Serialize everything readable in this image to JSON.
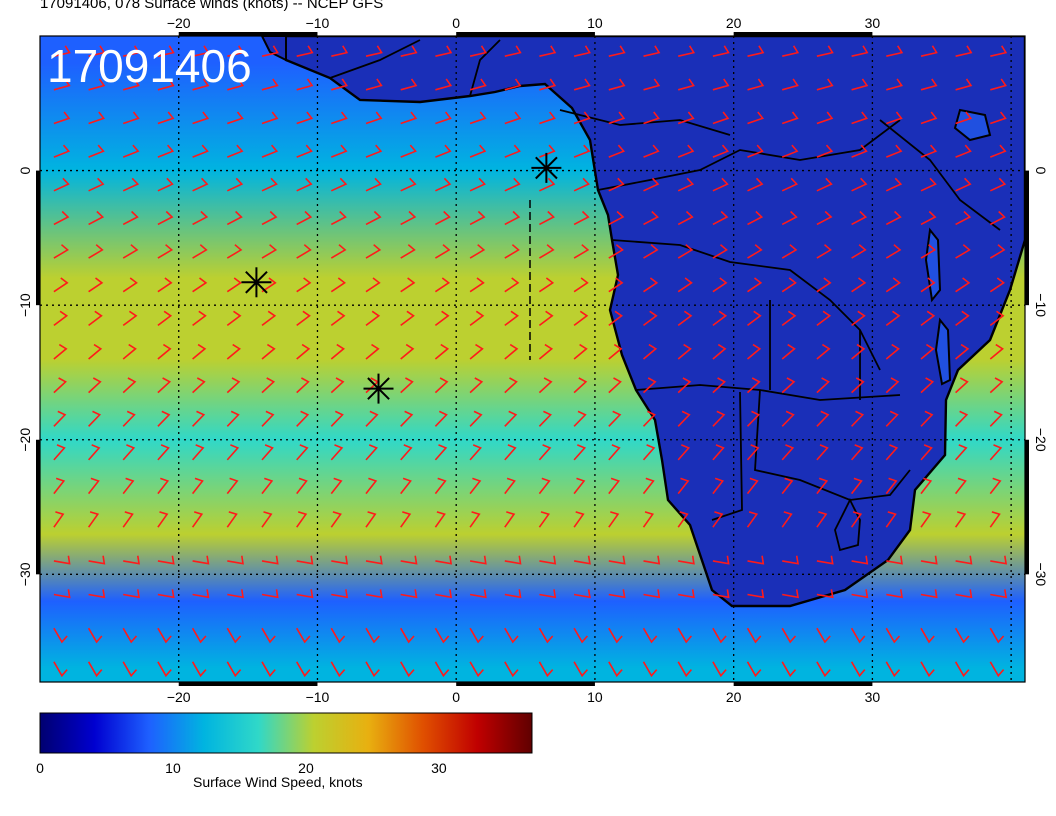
{
  "title": "17091406, 078 Surface winds (knots) -- NCEP GFS",
  "stamp": "17091406",
  "axes": {
    "lon_ticks": [
      "−20",
      "−10",
      "0",
      "10",
      "20",
      "30"
    ],
    "lat_ticks": [
      "0",
      "−10",
      "−20",
      "−30"
    ]
  },
  "colorbar": {
    "label": "Surface Wind Speed, knots",
    "ticks": [
      "0",
      "10",
      "20",
      "30"
    ],
    "range": [
      0,
      37
    ],
    "colors": [
      "#000070",
      "#0000d0",
      "#1e60ff",
      "#00b4e0",
      "#30d8c8",
      "#bcd030",
      "#e8b010",
      "#e05000",
      "#c00000",
      "#600000"
    ]
  },
  "map": {
    "lon_range": [
      -30,
      41
    ],
    "lat_range": [
      -38,
      10
    ],
    "projection": "cylindrical",
    "grid": "dotted every 10 degrees",
    "land_color": "#1a2fb8",
    "ocean_speed_bands": [
      {
        "lat": 8,
        "speed": 10
      },
      {
        "lat": 0,
        "speed": 14
      },
      {
        "lat": -8,
        "speed": 19
      },
      {
        "lat": -14,
        "speed": 21
      },
      {
        "lat": -20,
        "speed": 17
      },
      {
        "lat": -27,
        "speed": 20
      },
      {
        "lat": -32,
        "speed": 9
      },
      {
        "lat": -37,
        "speed": 14
      }
    ],
    "markers": [
      {
        "type": "asterisk",
        "lon": 6.5,
        "lat": 0.2
      },
      {
        "type": "asterisk",
        "lon": -14.4,
        "lat": -8.3
      },
      {
        "type": "asterisk",
        "lon": -5.6,
        "lat": -16.2
      }
    ],
    "wind_barb_color": "#ff1a1a",
    "wind_barb_spacing_deg": 2.5
  }
}
